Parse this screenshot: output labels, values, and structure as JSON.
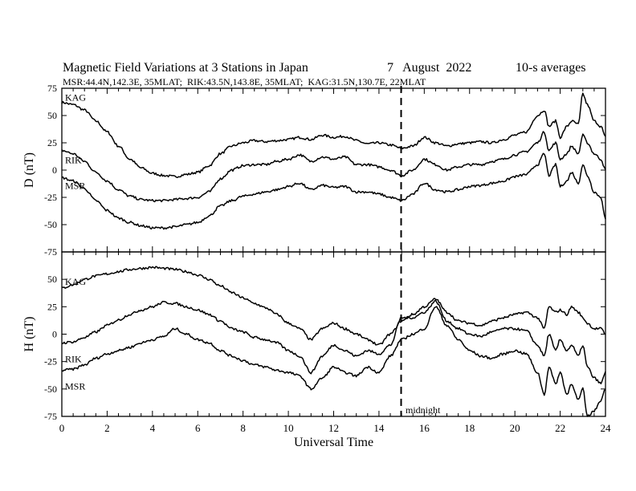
{
  "header": {
    "title": "Magnetic Field Variations at 3 Stations in Japan",
    "date": "7   August  2022",
    "averaging": "10-s averages",
    "stations_line": "MSR:44.4N,142.3E, 35MLAT;  RIK:43.5N,143.8E, 35MLAT;  KAG:31.5N,130.7E, 22MLAT"
  },
  "colors": {
    "line": "#000000",
    "background": "#ffffff"
  },
  "chart_data": [
    {
      "type": "line",
      "panel": "top",
      "ylabel": "D (nT)",
      "ylim": [
        -75,
        75
      ],
      "yticks": [
        75,
        50,
        25,
        0,
        -25,
        -50,
        -75
      ],
      "xlim": [
        0,
        24
      ],
      "xticks": [
        0,
        2,
        4,
        6,
        8,
        10,
        12,
        14,
        16,
        18,
        20,
        22,
        24
      ],
      "grid": false,
      "annotation_midnight_ut": 15,
      "x": [
        0,
        0.5,
        1,
        1.5,
        2,
        2.5,
        3,
        3.5,
        4,
        4.5,
        5,
        5.5,
        6,
        6.5,
        7,
        7.5,
        8,
        8.5,
        9,
        9.5,
        10,
        10.5,
        11,
        11.5,
        12,
        12.5,
        13,
        13.5,
        14,
        14.5,
        15,
        15.5,
        16,
        16.5,
        17,
        17.5,
        18,
        18.5,
        19,
        19.5,
        20,
        20.5,
        21,
        21.3,
        21.5,
        21.8,
        22,
        22.3,
        22.5,
        22.8,
        23,
        23.2,
        23.5,
        23.8,
        24
      ],
      "series": [
        {
          "name": "KAG",
          "values": [
            62,
            60,
            55,
            45,
            35,
            22,
            10,
            2,
            -3,
            -5,
            -6,
            -4,
            -2,
            4,
            15,
            22,
            25,
            27,
            26,
            27,
            28,
            30,
            28,
            32,
            30,
            31,
            27,
            24,
            25,
            23,
            20,
            22,
            30,
            25,
            22,
            24,
            25,
            26,
            25,
            28,
            32,
            35,
            50,
            55,
            40,
            45,
            30,
            40,
            45,
            42,
            70,
            60,
            45,
            40,
            30
          ]
        },
        {
          "name": "RIK",
          "values": [
            18,
            15,
            8,
            -2,
            -10,
            -18,
            -24,
            -27,
            -28,
            -28,
            -27,
            -26,
            -25,
            -20,
            -8,
            0,
            4,
            5,
            5,
            8,
            10,
            14,
            8,
            12,
            10,
            12,
            5,
            5,
            3,
            0,
            -5,
            0,
            10,
            5,
            0,
            3,
            5,
            5,
            8,
            10,
            14,
            17,
            25,
            35,
            18,
            25,
            10,
            15,
            22,
            15,
            32,
            25,
            15,
            10,
            0
          ]
        },
        {
          "name": "MSR",
          "values": [
            -7,
            -10,
            -17,
            -28,
            -37,
            -44,
            -48,
            -51,
            -53,
            -53,
            -52,
            -50,
            -48,
            -42,
            -33,
            -28,
            -24,
            -22,
            -20,
            -18,
            -15,
            -12,
            -18,
            -14,
            -16,
            -15,
            -20,
            -20,
            -22,
            -25,
            -28,
            -22,
            -12,
            -18,
            -20,
            -18,
            -15,
            -14,
            -12,
            -10,
            -6,
            -4,
            5,
            15,
            -5,
            5,
            -15,
            -10,
            -2,
            -12,
            5,
            -5,
            -20,
            -25,
            -45
          ]
        }
      ],
      "series_labels": [
        "KAG",
        "RIK",
        "MSR"
      ]
    },
    {
      "type": "line",
      "panel": "bottom",
      "ylabel": "H (nT)",
      "xlabel": "Universal Time",
      "ylim": [
        -75,
        75
      ],
      "yticks": [
        50,
        25,
        0,
        -25,
        -50,
        -75
      ],
      "xlim": [
        0,
        24
      ],
      "xticks": [
        0,
        2,
        4,
        6,
        8,
        10,
        12,
        14,
        16,
        18,
        20,
        22,
        24
      ],
      "xtick_labels": [
        "0",
        "2",
        "4",
        "6",
        "8",
        "10",
        "12",
        "14",
        "16",
        "18",
        "20",
        "22",
        "24"
      ],
      "grid": false,
      "annotation": "midnight",
      "annotation_midnight_ut": 15,
      "x": [
        0,
        0.5,
        1,
        1.5,
        2,
        2.5,
        3,
        3.5,
        4,
        4.5,
        5,
        5.5,
        6,
        6.5,
        7,
        7.5,
        8,
        8.5,
        9,
        9.5,
        10,
        10.5,
        11,
        11.5,
        12,
        12.5,
        13,
        13.5,
        14,
        14.5,
        15,
        15.5,
        16,
        16.5,
        17,
        17.5,
        18,
        18.5,
        19,
        19.5,
        20,
        20.5,
        21,
        21.3,
        21.5,
        21.8,
        22,
        22.3,
        22.5,
        22.8,
        23,
        23.2,
        23.5,
        23.8,
        24
      ],
      "series": [
        {
          "name": "KAG",
          "values": [
            42,
            45,
            50,
            53,
            55,
            57,
            59,
            60,
            61,
            60,
            59,
            57,
            54,
            50,
            44,
            38,
            33,
            28,
            24,
            18,
            10,
            5,
            -5,
            5,
            10,
            5,
            0,
            -5,
            -10,
            0,
            12,
            18,
            25,
            32,
            20,
            12,
            10,
            8,
            12,
            15,
            18,
            20,
            15,
            5,
            25,
            20,
            22,
            18,
            25,
            20,
            15,
            10,
            5,
            5,
            0
          ]
        },
        {
          "name": "RIK",
          "values": [
            -8,
            -7,
            -3,
            2,
            8,
            13,
            18,
            22,
            25,
            29,
            28,
            25,
            22,
            18,
            12,
            5,
            2,
            -3,
            -5,
            -8,
            -15,
            -20,
            -35,
            -20,
            -10,
            -15,
            -20,
            -15,
            -18,
            -10,
            15,
            15,
            20,
            30,
            12,
            5,
            0,
            -2,
            2,
            5,
            5,
            3,
            -10,
            -20,
            0,
            -15,
            -5,
            -15,
            -10,
            -20,
            -10,
            -30,
            -40,
            -45,
            -35
          ]
        },
        {
          "name": "MSR",
          "values": [
            -33,
            -32,
            -28,
            -22,
            -18,
            -15,
            -12,
            -8,
            -5,
            -2,
            5,
            0,
            -5,
            -8,
            -15,
            -20,
            -24,
            -28,
            -30,
            -33,
            -35,
            -38,
            -50,
            -40,
            -30,
            -35,
            -38,
            -30,
            -35,
            -20,
            -5,
            0,
            5,
            25,
            8,
            -5,
            -15,
            -20,
            -22,
            -18,
            -15,
            -18,
            -35,
            -55,
            -30,
            -45,
            -35,
            -55,
            -45,
            -60,
            -50,
            -75,
            -70,
            -60,
            -50
          ]
        }
      ],
      "series_labels": [
        "KAG",
        "RIK",
        "MSR"
      ]
    }
  ]
}
